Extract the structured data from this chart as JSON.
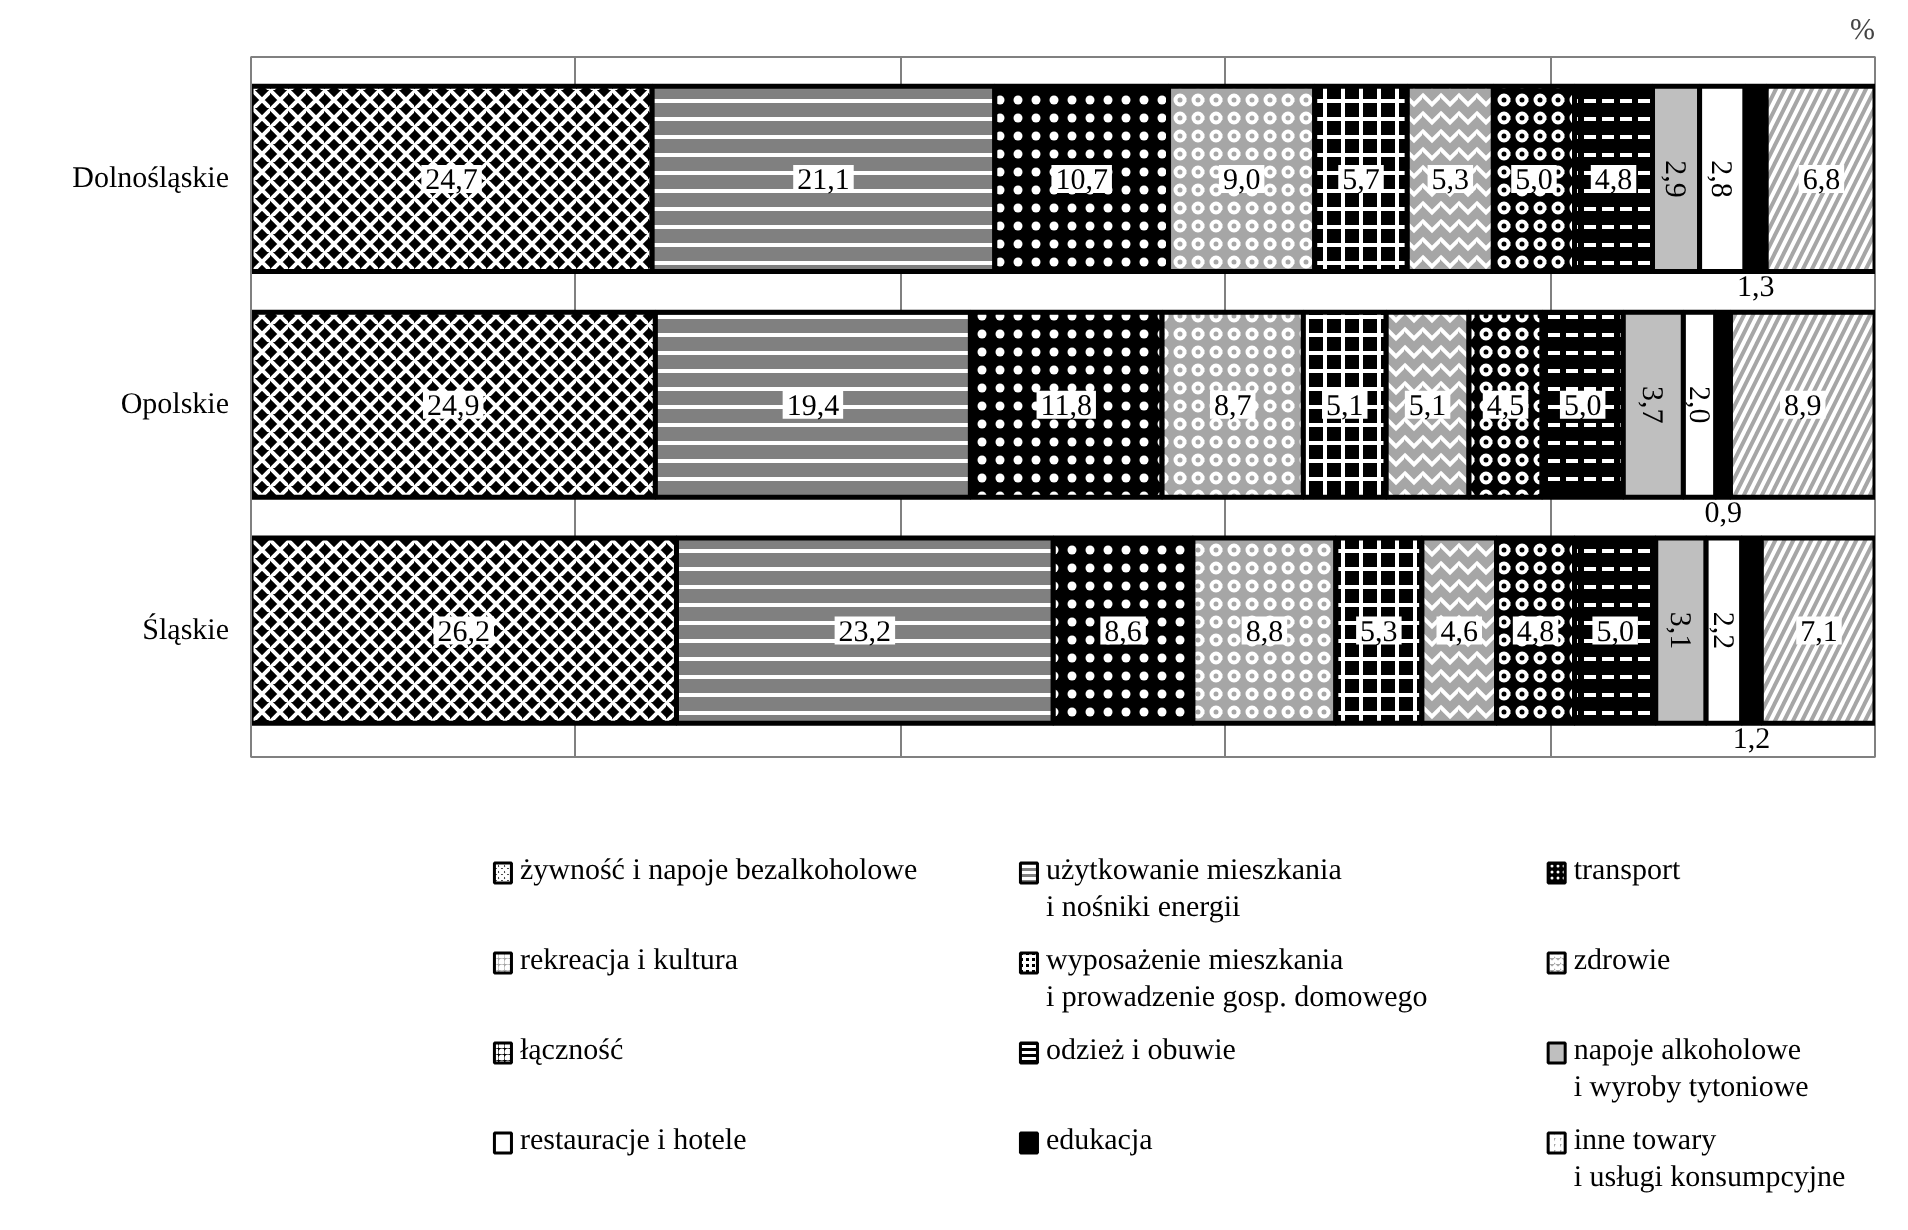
{
  "chart_data": {
    "type": "bar",
    "orientation": "horizontal",
    "stacked": true,
    "xlabel": "%",
    "categories": [
      "Dolnośląskie",
      "Opolskie",
      "Śląskie"
    ],
    "xlim": [
      0,
      100
    ],
    "xticks": [
      {
        "value": 0,
        "label": null
      },
      {
        "value": 20,
        "label": null
      },
      {
        "value": 40,
        "label": null
      },
      {
        "value": 60,
        "label": null
      },
      {
        "value": 80,
        "label": null
      },
      {
        "value": 100,
        "label": null
      }
    ],
    "tick_labels": "y",
    "grid": "x",
    "legend": "bottom",
    "series": [
      {
        "name": "żywność i napoje bezalkoholowe",
        "color": "#000000",
        "values": [
          24.7,
          24.9,
          26.2
        ],
        "value_labels": [
          "24,7",
          "24,9",
          "26,2"
        ]
      },
      {
        "name": "użytkowanie mieszkania\ni nośniki energii",
        "color": "#808080",
        "values": [
          21.1,
          19.4,
          23.2
        ],
        "value_labels": [
          "21,1",
          "19,4",
          "23,2"
        ]
      },
      {
        "name": "transport",
        "color": "#000000",
        "values": [
          10.7,
          11.8,
          8.6
        ],
        "value_labels": [
          "10,7",
          "11,8",
          "8,6"
        ]
      },
      {
        "name": "rekreacja i kultura",
        "color": "#a6a6a6",
        "values": [
          9.0,
          8.7,
          8.8
        ],
        "value_labels": [
          "9,0",
          "8,7",
          "8,8"
        ]
      },
      {
        "name": "wyposażenie mieszkania\ni prowadzenie gosp. domowego",
        "color": "#000000",
        "values": [
          5.7,
          5.1,
          5.3
        ],
        "value_labels": [
          "5,7",
          "5,1",
          "5,3"
        ]
      },
      {
        "name": "zdrowie",
        "color": "#a6a6a6",
        "values": [
          5.3,
          5.1,
          4.6
        ],
        "value_labels": [
          "5,3",
          "5,1",
          "4,6"
        ]
      },
      {
        "name": "łączność",
        "color": "#000000",
        "values": [
          5.0,
          4.5,
          4.8
        ],
        "value_labels": [
          "5,0",
          "4,5",
          "4,8"
        ]
      },
      {
        "name": "odzież i obuwie",
        "color": "#000000",
        "values": [
          4.8,
          5.0,
          5.0
        ],
        "value_labels": [
          "4,8",
          "5,0",
          "5,0"
        ]
      },
      {
        "name": "napoje alkoholowe\ni wyroby tytoniowe",
        "color": "#bfbfbf",
        "values": [
          2.9,
          3.7,
          3.1
        ],
        "value_labels": [
          "2,9",
          "3,7",
          "3,1"
        ]
      },
      {
        "name": "restauracje i hotele",
        "color": "#ffffff",
        "values": [
          2.8,
          2.0,
          2.2
        ],
        "value_labels": [
          "2,8",
          "2,0",
          "2,2"
        ]
      },
      {
        "name": "edukacja",
        "color": "#000000",
        "values": [
          1.3,
          0.9,
          1.2
        ],
        "value_labels": [
          "1,3",
          "0,9",
          "1,2"
        ]
      },
      {
        "name": "inne towary\ni usługi konsumpcyjne",
        "color": "#a6a6a6",
        "values": [
          6.8,
          8.9,
          7.1
        ],
        "value_labels": [
          "6,8",
          "8,9",
          "7,1"
        ]
      }
    ]
  }
}
